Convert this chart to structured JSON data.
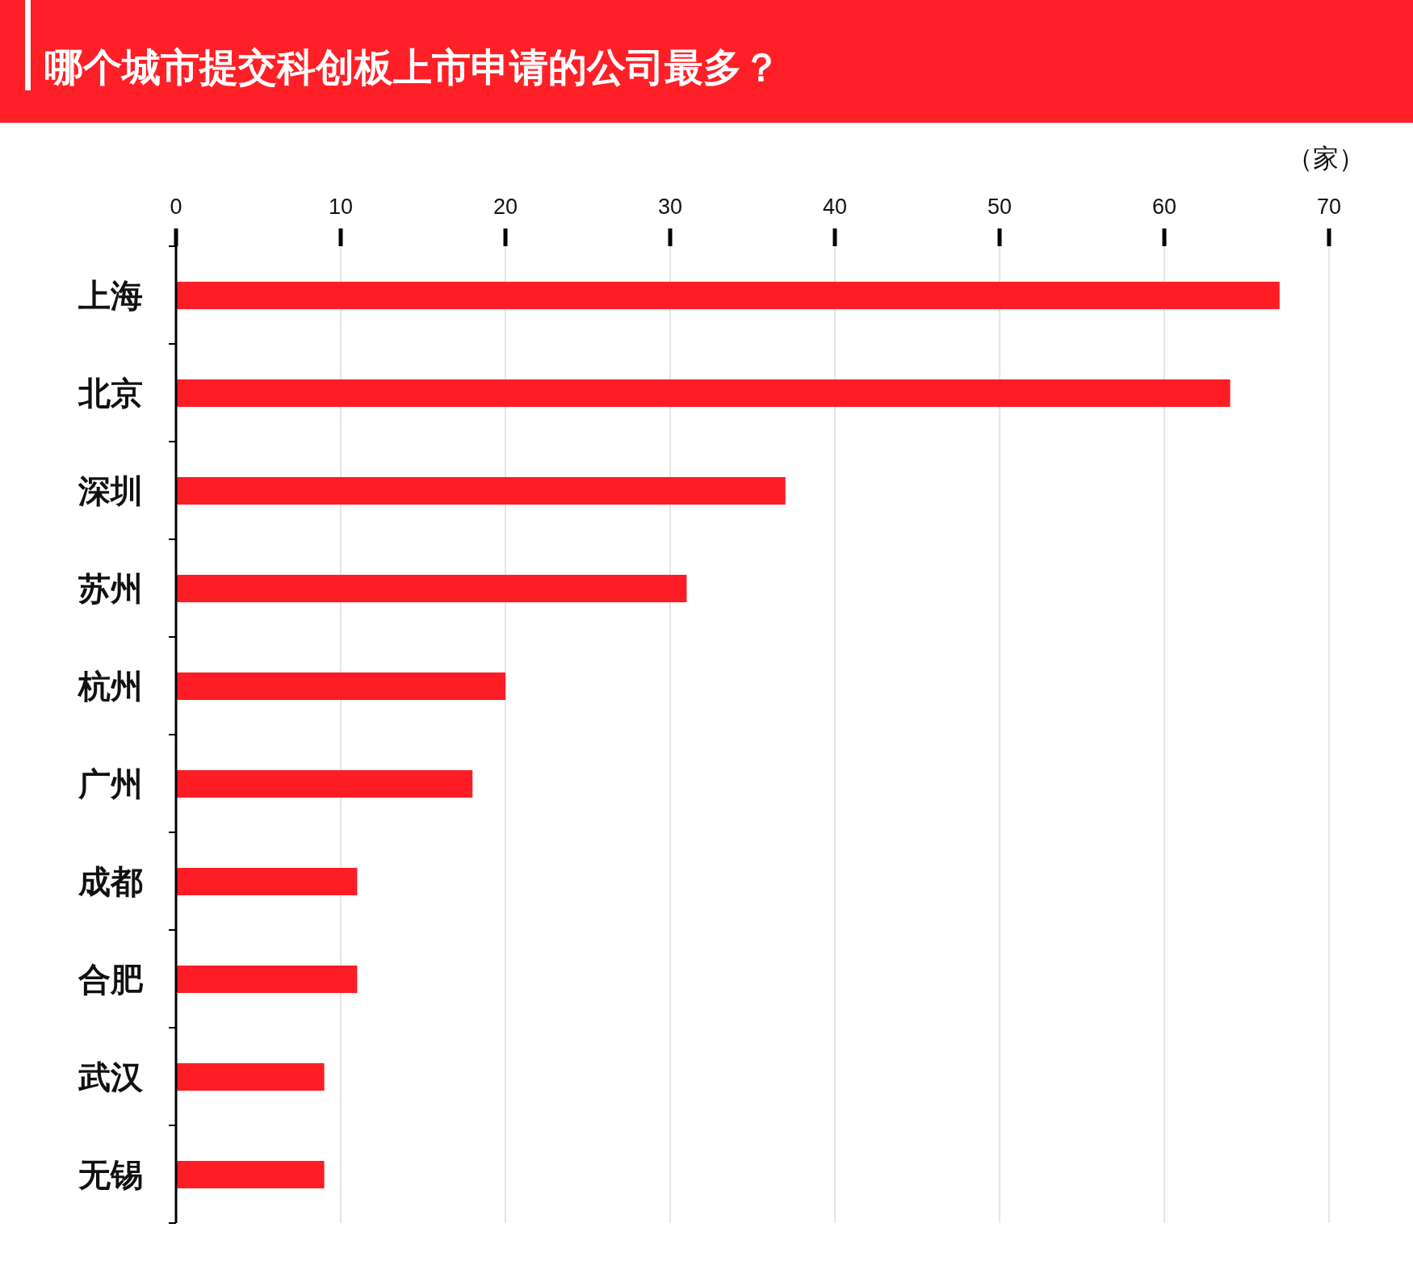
{
  "chart_data": {
    "type": "bar",
    "orientation": "horizontal",
    "title": "哪个城市提交科创板上市申请的公司最多？",
    "xlabel": "（家）",
    "categories": [
      "上海",
      "北京",
      "深圳",
      "苏州",
      "杭州",
      "广州",
      "成都",
      "合肥",
      "武汉",
      "无锡"
    ],
    "values": [
      67,
      64,
      37,
      31,
      20,
      18,
      11,
      11,
      9,
      9
    ],
    "color": "#ff1d25",
    "xlim": [
      0,
      70
    ],
    "xticks": [
      0,
      10,
      20,
      30,
      40,
      50,
      60,
      70
    ],
    "grid": "x"
  }
}
